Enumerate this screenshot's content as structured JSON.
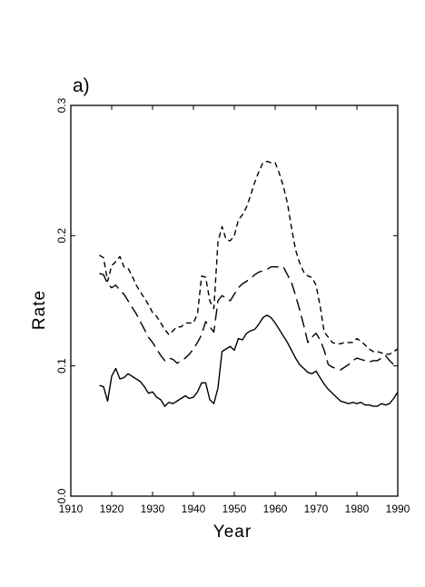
{
  "panel_label": "a)",
  "chart_data": {
    "type": "line",
    "title": "",
    "xlabel": "Year",
    "ylabel": "Rate",
    "xlim": [
      1910,
      1990
    ],
    "ylim": [
      0.0,
      0.3
    ],
    "x_ticks": [
      1910,
      1920,
      1930,
      1940,
      1950,
      1960,
      1970,
      1980,
      1990
    ],
    "x_tick_labels": [
      "1910",
      "1920",
      "1930",
      "1940",
      "1950",
      "1960",
      "1970",
      "1980",
      "1990"
    ],
    "y_ticks": [
      0.0,
      0.1,
      0.2,
      0.3
    ],
    "y_tick_labels": [
      "0.0",
      "0.1",
      "0.2",
      "0.3"
    ],
    "grid": false,
    "legend": "none",
    "series": [
      {
        "line_style": "solid",
        "x": [
          1917,
          1918,
          1919,
          1920,
          1921,
          1922,
          1923,
          1924,
          1925,
          1926,
          1927,
          1928,
          1929,
          1930,
          1931,
          1932,
          1933,
          1934,
          1935,
          1936,
          1937,
          1938,
          1939,
          1940,
          1941,
          1942,
          1943,
          1944,
          1945,
          1946,
          1947,
          1948,
          1949,
          1950,
          1951,
          1952,
          1953,
          1954,
          1955,
          1956,
          1957,
          1958,
          1959,
          1960,
          1961,
          1962,
          1963,
          1964,
          1965,
          1966,
          1967,
          1968,
          1969,
          1970,
          1971,
          1972,
          1973,
          1974,
          1975,
          1976,
          1977,
          1978,
          1979,
          1980,
          1981,
          1982,
          1983,
          1984,
          1985,
          1986,
          1987,
          1988,
          1989,
          1990
        ],
        "values": [
          0.085,
          0.084,
          0.073,
          0.092,
          0.098,
          0.09,
          0.091,
          0.094,
          0.092,
          0.09,
          0.088,
          0.084,
          0.079,
          0.08,
          0.076,
          0.074,
          0.069,
          0.072,
          0.071,
          0.073,
          0.075,
          0.077,
          0.075,
          0.076,
          0.08,
          0.087,
          0.087,
          0.074,
          0.071,
          0.083,
          0.111,
          0.113,
          0.115,
          0.112,
          0.121,
          0.12,
          0.125,
          0.127,
          0.128,
          0.132,
          0.137,
          0.139,
          0.137,
          0.133,
          0.128,
          0.123,
          0.118,
          0.112,
          0.106,
          0.101,
          0.098,
          0.095,
          0.094,
          0.096,
          0.091,
          0.086,
          0.082,
          0.079,
          0.076,
          0.073,
          0.072,
          0.071,
          0.072,
          0.071,
          0.072,
          0.07,
          0.07,
          0.069,
          0.069,
          0.071,
          0.07,
          0.071,
          0.075,
          0.08
        ]
      },
      {
        "line_style": "long-dash",
        "x": [
          1917,
          1918,
          1919,
          1920,
          1921,
          1922,
          1923,
          1924,
          1925,
          1926,
          1927,
          1928,
          1929,
          1930,
          1931,
          1932,
          1933,
          1934,
          1935,
          1936,
          1937,
          1938,
          1939,
          1940,
          1941,
          1942,
          1943,
          1944,
          1945,
          1946,
          1947,
          1948,
          1949,
          1950,
          1951,
          1952,
          1953,
          1954,
          1955,
          1956,
          1957,
          1958,
          1959,
          1960,
          1961,
          1962,
          1963,
          1964,
          1965,
          1966,
          1967,
          1968,
          1969,
          1970,
          1971,
          1972,
          1973,
          1974,
          1975,
          1976,
          1977,
          1978,
          1979,
          1980,
          1981,
          1982,
          1983,
          1984,
          1985,
          1986,
          1987,
          1988,
          1989,
          1990
        ],
        "values": [
          0.171,
          0.17,
          0.163,
          0.16,
          0.162,
          0.158,
          0.155,
          0.15,
          0.145,
          0.14,
          0.134,
          0.128,
          0.122,
          0.118,
          0.113,
          0.108,
          0.104,
          0.106,
          0.105,
          0.102,
          0.104,
          0.106,
          0.109,
          0.113,
          0.118,
          0.124,
          0.134,
          0.13,
          0.126,
          0.15,
          0.154,
          0.152,
          0.15,
          0.155,
          0.16,
          0.163,
          0.165,
          0.167,
          0.17,
          0.172,
          0.173,
          0.174,
          0.176,
          0.176,
          0.176,
          0.176,
          0.17,
          0.164,
          0.154,
          0.143,
          0.131,
          0.118,
          0.122,
          0.125,
          0.12,
          0.112,
          0.101,
          0.099,
          0.098,
          0.097,
          0.099,
          0.101,
          0.104,
          0.106,
          0.105,
          0.104,
          0.103,
          0.104,
          0.104,
          0.106,
          0.108,
          0.104,
          0.101,
          0.098
        ]
      },
      {
        "line_style": "short-dash",
        "x": [
          1917,
          1918,
          1919,
          1920,
          1921,
          1922,
          1923,
          1924,
          1925,
          1926,
          1927,
          1928,
          1929,
          1930,
          1931,
          1932,
          1933,
          1934,
          1935,
          1936,
          1937,
          1938,
          1939,
          1940,
          1941,
          1942,
          1943,
          1944,
          1945,
          1946,
          1947,
          1948,
          1949,
          1950,
          1951,
          1952,
          1953,
          1954,
          1955,
          1956,
          1957,
          1958,
          1959,
          1960,
          1961,
          1962,
          1963,
          1964,
          1965,
          1966,
          1967,
          1968,
          1969,
          1970,
          1971,
          1972,
          1973,
          1974,
          1975,
          1976,
          1977,
          1978,
          1979,
          1980,
          1981,
          1982,
          1983,
          1984,
          1985,
          1986,
          1987,
          1988,
          1989,
          1990
        ],
        "values": [
          0.185,
          0.183,
          0.165,
          0.177,
          0.18,
          0.184,
          0.176,
          0.175,
          0.169,
          0.162,
          0.157,
          0.152,
          0.147,
          0.141,
          0.138,
          0.133,
          0.128,
          0.124,
          0.127,
          0.13,
          0.13,
          0.133,
          0.133,
          0.133,
          0.14,
          0.169,
          0.168,
          0.15,
          0.144,
          0.195,
          0.207,
          0.197,
          0.196,
          0.2,
          0.212,
          0.216,
          0.222,
          0.231,
          0.241,
          0.249,
          0.256,
          0.257,
          0.256,
          0.256,
          0.248,
          0.238,
          0.225,
          0.206,
          0.189,
          0.179,
          0.172,
          0.169,
          0.168,
          0.162,
          0.146,
          0.126,
          0.122,
          0.118,
          0.117,
          0.117,
          0.118,
          0.118,
          0.118,
          0.121,
          0.119,
          0.116,
          0.113,
          0.111,
          0.111,
          0.11,
          0.109,
          0.109,
          0.111,
          0.113
        ]
      }
    ]
  }
}
